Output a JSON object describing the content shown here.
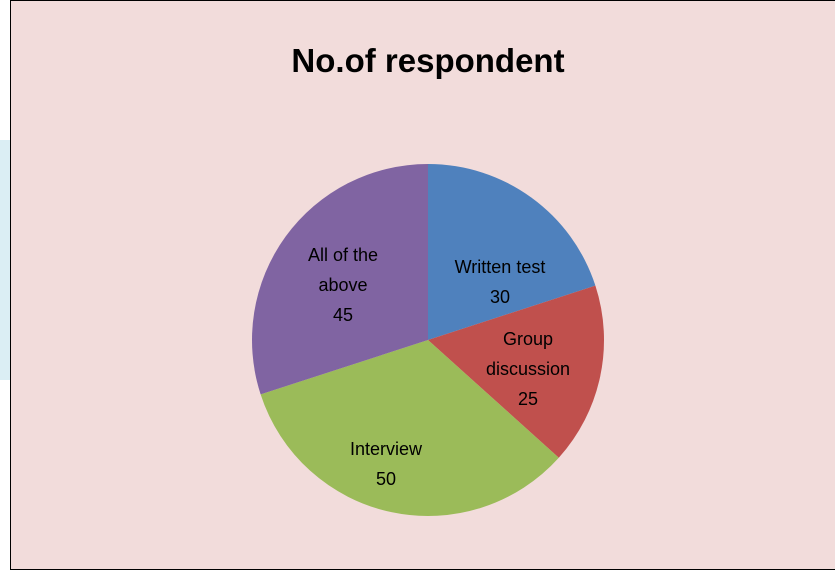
{
  "chart_data": {
    "type": "pie",
    "title": "No.of respondent",
    "categories": [
      "Written test",
      "Group discussion",
      "Interview",
      "All of the above"
    ],
    "values": [
      30,
      25,
      50,
      45
    ],
    "colors": [
      "#4f81bd",
      "#c0504d",
      "#9bbb59",
      "#8064a2"
    ]
  }
}
